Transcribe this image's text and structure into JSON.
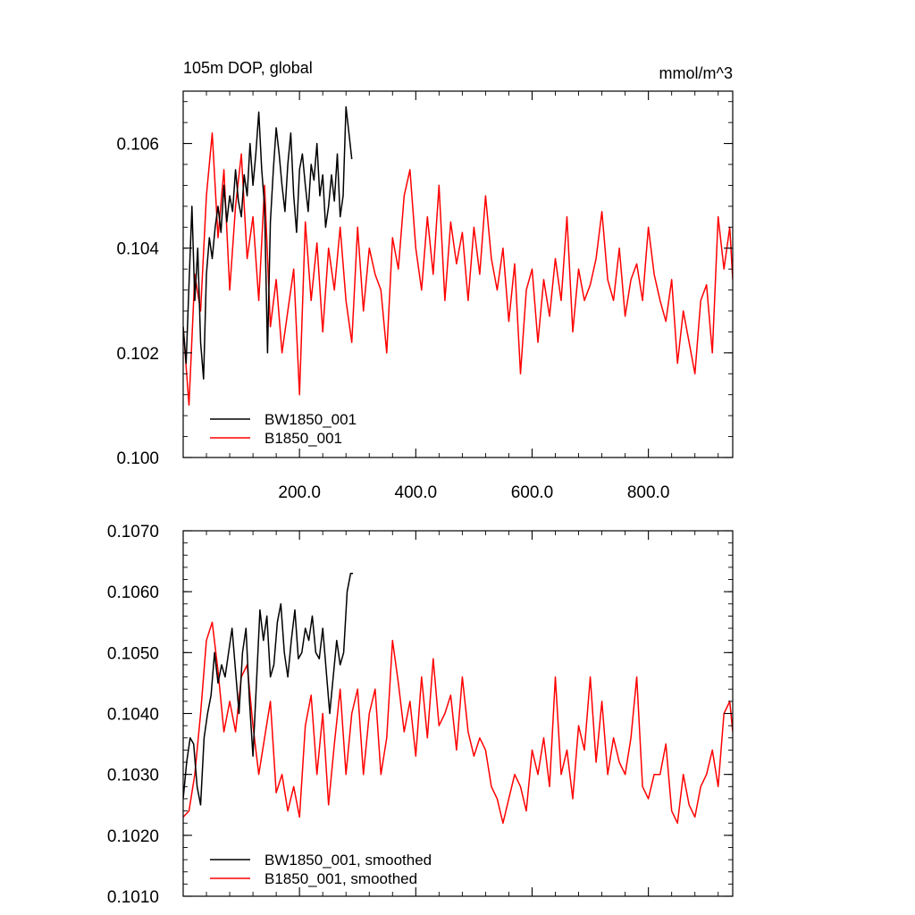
{
  "colors": {
    "bw": "#000000",
    "b": "#ff0000"
  },
  "chart_data": [
    {
      "type": "line",
      "title": "105m DOP, global",
      "units": "mmol/m^3",
      "xlim": [
        0,
        945
      ],
      "ylim": [
        0.1,
        0.107
      ],
      "xticks": [
        200,
        400,
        600,
        800
      ],
      "xtick_labels": [
        "200.0",
        "400.0",
        "600.0",
        "800.0"
      ],
      "yticks": [
        0.1,
        0.102,
        0.104,
        0.106
      ],
      "ytick_labels": [
        "0.100",
        "0.102",
        "0.104",
        "0.106"
      ],
      "legend_position": "bottom-left",
      "series": [
        {
          "name": "BW1850_001",
          "color": "#000000",
          "x": [
            0,
            5,
            10,
            15,
            20,
            25,
            30,
            35,
            40,
            45,
            50,
            55,
            60,
            65,
            70,
            75,
            80,
            85,
            90,
            95,
            100,
            105,
            110,
            115,
            120,
            125,
            130,
            135,
            140,
            145,
            150,
            155,
            160,
            165,
            170,
            175,
            180,
            185,
            190,
            195,
            200,
            205,
            210,
            215,
            220,
            225,
            230,
            235,
            240,
            245,
            250,
            255,
            260,
            265,
            270,
            275,
            280,
            285,
            290
          ],
          "y": [
            0.1025,
            0.1018,
            0.1033,
            0.1048,
            0.103,
            0.104,
            0.1022,
            0.1015,
            0.1035,
            0.1042,
            0.1038,
            0.1044,
            0.1048,
            0.1043,
            0.1052,
            0.1045,
            0.105,
            0.1047,
            0.1055,
            0.1049,
            0.1046,
            0.1054,
            0.105,
            0.106,
            0.1052,
            0.1058,
            0.1066,
            0.1055,
            0.1048,
            0.102,
            0.1045,
            0.1055,
            0.1063,
            0.1058,
            0.1052,
            0.1047,
            0.1056,
            0.1062,
            0.105,
            0.1043,
            0.1055,
            0.1058,
            0.1052,
            0.1047,
            0.1056,
            0.1053,
            0.106,
            0.105,
            0.1054,
            0.1044,
            0.1048,
            0.1054,
            0.1049,
            0.1058,
            0.1046,
            0.105,
            0.1067,
            0.1062,
            0.1057
          ]
        },
        {
          "name": "B1850_001",
          "color": "#ff0000",
          "x": [
            0,
            10,
            20,
            30,
            40,
            50,
            60,
            70,
            80,
            90,
            100,
            110,
            120,
            130,
            140,
            150,
            160,
            170,
            180,
            190,
            200,
            210,
            220,
            230,
            240,
            250,
            260,
            270,
            280,
            290,
            300,
            310,
            320,
            330,
            340,
            350,
            360,
            370,
            380,
            390,
            400,
            410,
            420,
            430,
            440,
            450,
            460,
            470,
            480,
            490,
            500,
            510,
            520,
            530,
            540,
            550,
            560,
            570,
            580,
            590,
            600,
            610,
            620,
            630,
            640,
            650,
            660,
            670,
            680,
            690,
            700,
            710,
            720,
            730,
            740,
            750,
            760,
            770,
            780,
            790,
            800,
            810,
            820,
            830,
            840,
            850,
            860,
            870,
            880,
            890,
            900,
            910,
            920,
            930,
            940,
            945
          ],
          "y": [
            0.1025,
            0.101,
            0.1035,
            0.1028,
            0.105,
            0.1062,
            0.1042,
            0.1055,
            0.1032,
            0.1048,
            0.1058,
            0.1038,
            0.1046,
            0.103,
            0.1052,
            0.1025,
            0.1034,
            0.102,
            0.1028,
            0.1036,
            0.1012,
            0.1045,
            0.103,
            0.1041,
            0.1024,
            0.104,
            0.1032,
            0.1044,
            0.103,
            0.1022,
            0.1044,
            0.1028,
            0.104,
            0.1035,
            0.1032,
            0.102,
            0.1042,
            0.1036,
            0.105,
            0.1055,
            0.104,
            0.1032,
            0.1046,
            0.1035,
            0.1052,
            0.103,
            0.1045,
            0.1037,
            0.1043,
            0.103,
            0.1044,
            0.1035,
            0.105,
            0.1038,
            0.1032,
            0.104,
            0.1026,
            0.1037,
            0.1016,
            0.1032,
            0.1036,
            0.1022,
            0.1034,
            0.1027,
            0.1038,
            0.103,
            0.1046,
            0.1024,
            0.1036,
            0.103,
            0.1033,
            0.1038,
            0.1047,
            0.1034,
            0.103,
            0.104,
            0.1027,
            0.1034,
            0.1037,
            0.103,
            0.1044,
            0.1035,
            0.103,
            0.1026,
            0.1034,
            0.1018,
            0.1028,
            0.1022,
            0.1016,
            0.103,
            0.1033,
            0.102,
            0.1046,
            0.1036,
            0.1044,
            0.1034
          ]
        }
      ]
    },
    {
      "type": "line",
      "xlim": [
        0,
        945
      ],
      "ylim": [
        0.101,
        0.107
      ],
      "yticks": [
        0.101,
        0.102,
        0.103,
        0.104,
        0.105,
        0.106,
        0.107
      ],
      "ytick_labels": [
        "0.1010",
        "0.1020",
        "0.1030",
        "0.1040",
        "0.1050",
        "0.1060",
        "0.1070"
      ],
      "legend_position": "bottom-left",
      "series": [
        {
          "name": "BW1850_001, smoothed",
          "color": "#000000",
          "x": [
            0,
            6,
            12,
            18,
            24,
            30,
            36,
            42,
            48,
            54,
            60,
            66,
            72,
            78,
            84,
            90,
            96,
            102,
            108,
            114,
            120,
            126,
            132,
            138,
            144,
            150,
            156,
            162,
            168,
            174,
            180,
            186,
            192,
            198,
            204,
            210,
            216,
            222,
            228,
            234,
            240,
            246,
            252,
            258,
            264,
            270,
            276,
            282,
            288,
            292
          ],
          "y": [
            0.1026,
            0.1032,
            0.1036,
            0.1035,
            0.1028,
            0.1025,
            0.1036,
            0.104,
            0.1043,
            0.105,
            0.1045,
            0.1048,
            0.1046,
            0.105,
            0.1054,
            0.1047,
            0.104,
            0.105,
            0.1054,
            0.1042,
            0.1033,
            0.1045,
            0.1057,
            0.1052,
            0.1056,
            0.1046,
            0.1048,
            0.1055,
            0.1058,
            0.105,
            0.1046,
            0.1052,
            0.1057,
            0.1049,
            0.105,
            0.1054,
            0.1052,
            0.1056,
            0.105,
            0.1049,
            0.1054,
            0.1047,
            0.104,
            0.1046,
            0.1052,
            0.1048,
            0.105,
            0.106,
            0.1063,
            0.1063
          ]
        },
        {
          "name": "B1850_001, smoothed",
          "color": "#ff0000",
          "x": [
            0,
            10,
            20,
            30,
            40,
            50,
            60,
            70,
            80,
            90,
            100,
            110,
            120,
            130,
            140,
            150,
            160,
            170,
            180,
            190,
            200,
            210,
            220,
            230,
            240,
            250,
            260,
            270,
            280,
            290,
            300,
            310,
            320,
            330,
            340,
            350,
            360,
            370,
            380,
            390,
            400,
            410,
            420,
            430,
            440,
            450,
            460,
            470,
            480,
            490,
            500,
            510,
            520,
            530,
            540,
            550,
            560,
            570,
            580,
            590,
            600,
            610,
            620,
            630,
            640,
            650,
            660,
            670,
            680,
            690,
            700,
            710,
            720,
            730,
            740,
            750,
            760,
            770,
            780,
            790,
            800,
            810,
            820,
            830,
            840,
            850,
            860,
            870,
            880,
            890,
            900,
            910,
            920,
            930,
            940,
            945
          ],
          "y": [
            0.1023,
            0.1024,
            0.103,
            0.104,
            0.1052,
            0.1055,
            0.1047,
            0.1037,
            0.1042,
            0.1037,
            0.1046,
            0.1048,
            0.1038,
            0.103,
            0.1036,
            0.1042,
            0.1027,
            0.103,
            0.1024,
            0.1028,
            0.1023,
            0.1038,
            0.1043,
            0.103,
            0.104,
            0.1025,
            0.1035,
            0.1044,
            0.103,
            0.104,
            0.1044,
            0.103,
            0.104,
            0.1044,
            0.103,
            0.1036,
            0.1052,
            0.1045,
            0.1037,
            0.1042,
            0.1033,
            0.1046,
            0.1036,
            0.1049,
            0.1038,
            0.104,
            0.1043,
            0.1034,
            0.1046,
            0.1037,
            0.1033,
            0.1036,
            0.1034,
            0.1028,
            0.1026,
            0.1022,
            0.1026,
            0.103,
            0.1028,
            0.1024,
            0.1034,
            0.103,
            0.1036,
            0.1028,
            0.1046,
            0.103,
            0.1034,
            0.1026,
            0.1038,
            0.1034,
            0.1046,
            0.1032,
            0.1042,
            0.103,
            0.1036,
            0.1032,
            0.103,
            0.1036,
            0.1046,
            0.1028,
            0.1026,
            0.103,
            0.103,
            0.1035,
            0.1024,
            0.1022,
            0.103,
            0.1025,
            0.1023,
            0.1028,
            0.103,
            0.1034,
            0.1028,
            0.104,
            0.1042,
            0.1037
          ]
        }
      ]
    }
  ]
}
